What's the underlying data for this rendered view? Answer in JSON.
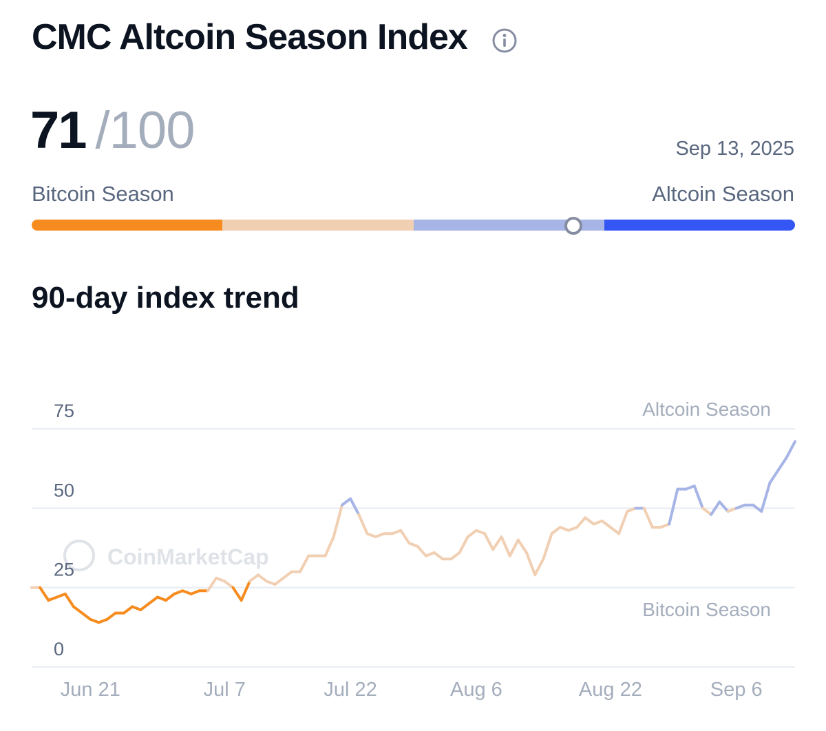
{
  "header": {
    "title": "CMC Altcoin Season Index",
    "info_icon": "info-circle-icon"
  },
  "score": {
    "value": "71",
    "max": "/100",
    "date": "Sep 13, 2025"
  },
  "gauge": {
    "left_label": "Bitcoin Season",
    "right_label": "Altcoin Season",
    "value": 71,
    "segments": [
      {
        "from": 0,
        "to": 25,
        "color": "#f68c1f"
      },
      {
        "from": 25,
        "to": 50,
        "color": "#f1cfb3"
      },
      {
        "from": 50,
        "to": 75,
        "color": "#a6b4e6"
      },
      {
        "from": 75,
        "to": 100,
        "color": "#3356f5"
      }
    ]
  },
  "trend": {
    "title": "90-day index trend"
  },
  "watermark": "CoinMarketCap",
  "colors": {
    "bitcoin_season": "#f68c1f",
    "neutral": "#f1cfb3",
    "altcoin_leaning": "#a6b4e6",
    "altcoin_season": "#3356f5",
    "grid": "#e8ecf3",
    "axis_text": "#58667e",
    "zone_text": "#a4adbc"
  },
  "chart_data": {
    "type": "line",
    "ylim": [
      0,
      75
    ],
    "yticks": [
      0,
      25,
      50,
      75
    ],
    "xticks": [
      "Jun 21",
      "Jul 7",
      "Jul 22",
      "Aug 6",
      "Aug 22",
      "Sep 6"
    ],
    "zone_labels": {
      "top": "Altcoin Season",
      "bottom": "Bitcoin Season"
    },
    "grid": true,
    "x": [
      "Jun 14",
      "Jun 15",
      "Jun 16",
      "Jun 17",
      "Jun 18",
      "Jun 19",
      "Jun 20",
      "Jun 21",
      "Jun 22",
      "Jun 23",
      "Jun 24",
      "Jun 25",
      "Jun 26",
      "Jun 27",
      "Jun 28",
      "Jun 29",
      "Jun 30",
      "Jul 1",
      "Jul 2",
      "Jul 3",
      "Jul 4",
      "Jul 5",
      "Jul 6",
      "Jul 7",
      "Jul 8",
      "Jul 9",
      "Jul 10",
      "Jul 11",
      "Jul 12",
      "Jul 13",
      "Jul 14",
      "Jul 15",
      "Jul 16",
      "Jul 17",
      "Jul 18",
      "Jul 19",
      "Jul 20",
      "Jul 21",
      "Jul 22",
      "Jul 23",
      "Jul 24",
      "Jul 25",
      "Jul 26",
      "Jul 27",
      "Jul 28",
      "Jul 29",
      "Jul 30",
      "Jul 31",
      "Aug 1",
      "Aug 2",
      "Aug 3",
      "Aug 4",
      "Aug 5",
      "Aug 6",
      "Aug 7",
      "Aug 8",
      "Aug 9",
      "Aug 10",
      "Aug 11",
      "Aug 12",
      "Aug 13",
      "Aug 14",
      "Aug 15",
      "Aug 16",
      "Aug 17",
      "Aug 18",
      "Aug 19",
      "Aug 20",
      "Aug 21",
      "Aug 22",
      "Aug 23",
      "Aug 24",
      "Aug 25",
      "Aug 26",
      "Aug 27",
      "Aug 28",
      "Aug 29",
      "Aug 30",
      "Aug 31",
      "Sep 1",
      "Sep 2",
      "Sep 3",
      "Sep 4",
      "Sep 5",
      "Sep 6",
      "Sep 7",
      "Sep 8",
      "Sep 9",
      "Sep 10",
      "Sep 11",
      "Sep 12",
      "Sep 13"
    ],
    "values": [
      25,
      25,
      21,
      22,
      23,
      19,
      17,
      15,
      14,
      15,
      17,
      17,
      19,
      18,
      20,
      22,
      21,
      23,
      24,
      23,
      24,
      24,
      28,
      27,
      25,
      21,
      27,
      29,
      27,
      26,
      28,
      30,
      30,
      35,
      35,
      35,
      41,
      51,
      53,
      48,
      42,
      41,
      42,
      42,
      43,
      39,
      38,
      35,
      36,
      34,
      34,
      36,
      41,
      43,
      42,
      37,
      41,
      35,
      40,
      36,
      29,
      34,
      42,
      44,
      43,
      44,
      47,
      45,
      46,
      44,
      42,
      49,
      50,
      50,
      44,
      44,
      45,
      56,
      56,
      57,
      50,
      48,
      52,
      49,
      50,
      51,
      51,
      49,
      58,
      62,
      66,
      71
    ]
  }
}
